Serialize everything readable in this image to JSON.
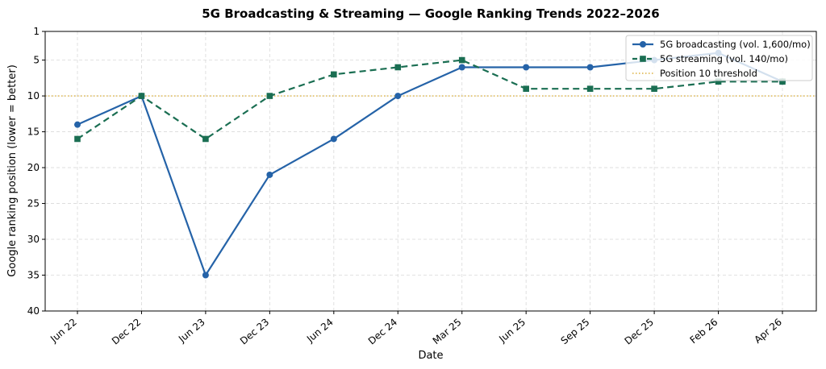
{
  "chart_data": {
    "type": "line",
    "title": "5G Broadcasting & Streaming — Google Ranking Trends 2022–2026",
    "xlabel": "Date",
    "ylabel": "Google ranking position (lower = better)",
    "categories": [
      "Jun 22",
      "Dec 22",
      "Jun 23",
      "Dec 23",
      "Jun 24",
      "Dec 24",
      "Mar 25",
      "Jun 25",
      "Sep 25",
      "Dec 25",
      "Feb 26",
      "Apr 26"
    ],
    "ylim": [
      40,
      1
    ],
    "y_inverted": true,
    "yticks": [
      1,
      5,
      10,
      15,
      20,
      25,
      30,
      35,
      40
    ],
    "grid": true,
    "legend_position": "top-right",
    "series": [
      {
        "name": "5G broadcasting (vol. 1,600/mo)",
        "values": [
          14,
          10,
          35,
          21,
          16,
          10,
          6,
          6,
          6,
          5,
          4,
          8
        ],
        "color": "#2563a8",
        "line_style": "solid",
        "marker": "circle"
      },
      {
        "name": "5G streaming (vol. 140/mo)",
        "values": [
          16,
          10,
          16,
          10,
          7,
          6,
          5,
          9,
          9,
          9,
          8,
          8
        ],
        "color": "#1a6e52",
        "line_style": "dashed",
        "marker": "square"
      }
    ],
    "reference_lines": [
      {
        "name": "Position 10 threshold",
        "y": 10,
        "color": "#d4a017",
        "line_style": "dotted"
      }
    ]
  }
}
